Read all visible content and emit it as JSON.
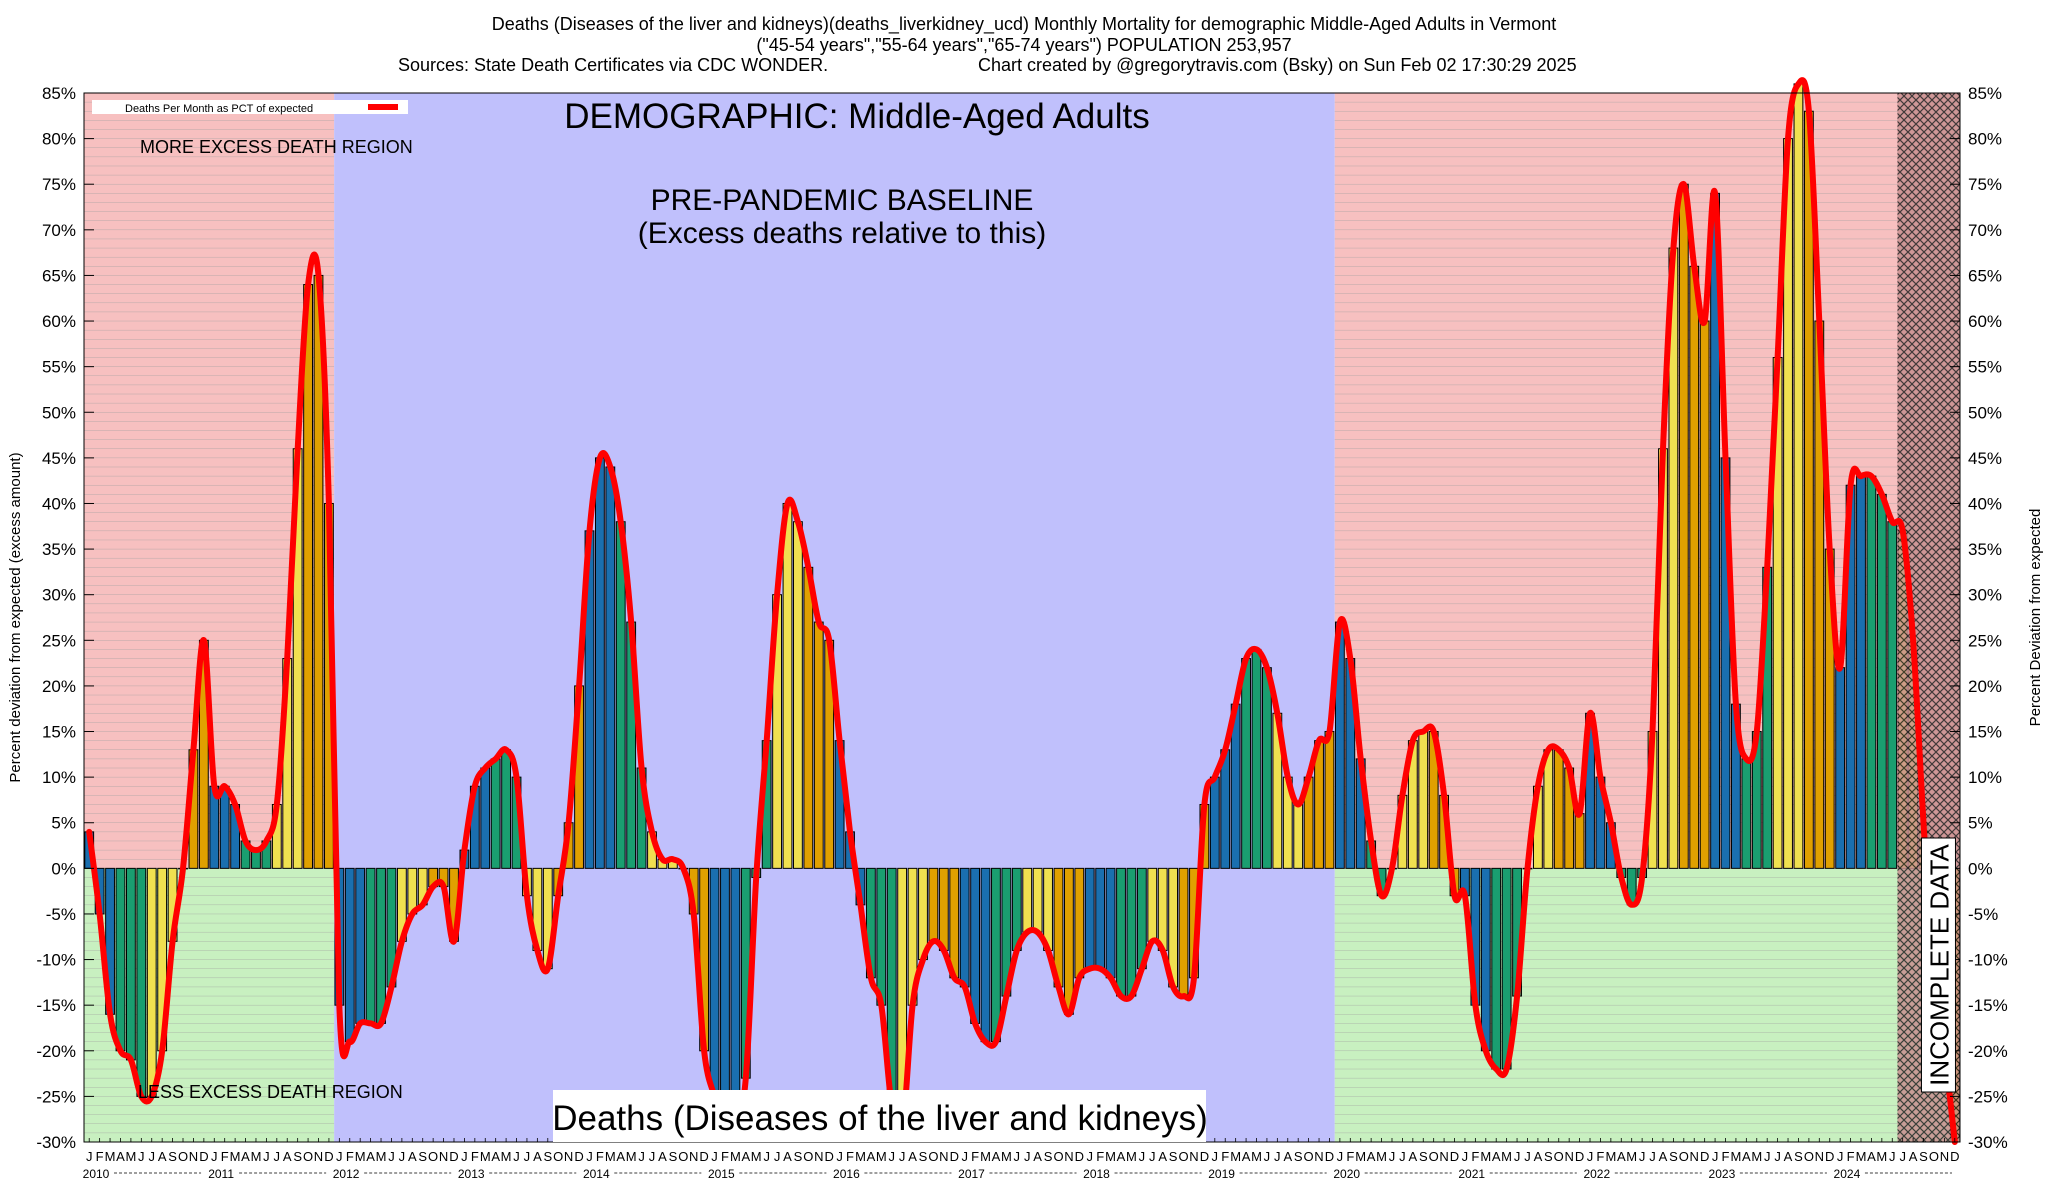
{
  "header": {
    "line1": "Deaths (Diseases of the liver and kidneys)(deaths_liverkidney_ucd) Monthly Mortality for demographic Middle-Aged Adults in Vermont",
    "line2": "(\"45-54 years\",\"55-64 years\",\"65-74 years\") POPULATION 253,957",
    "line3_left": "Sources: State Death Certificates via CDC WONDER.",
    "line3_right": "Chart created by @gregorytravis.com (Bsky) on Sun Feb 02 17:30:29 2025"
  },
  "chart_data": {
    "type": "bar",
    "title": "DEMOGRAPHIC: Middle-Aged Adults",
    "bottom_title": "Deaths (Diseases of the liver and kidneys)",
    "ylabel_left": "Percent deviation from expected (excess amount)",
    "ylabel_right": "Percent Deviation from expected",
    "legend": "Deaths Per Month as PCT of expected",
    "ylim": [
      -30,
      85
    ],
    "grid": true,
    "legend_position": "top-left",
    "yticks": [
      "85%",
      "80%",
      "75%",
      "70%",
      "65%",
      "60%",
      "55%",
      "50%",
      "45%",
      "40%",
      "35%",
      "30%",
      "25%",
      "20%",
      "15%",
      "10%",
      "5%",
      "0%",
      "-5%",
      "-10%",
      "-15%",
      "-20%",
      "-25%",
      "-30%"
    ],
    "month_labels": [
      "J",
      "F",
      "M",
      "A",
      "M",
      "J",
      "J",
      "A",
      "S",
      "O",
      "N",
      "D"
    ],
    "years": [
      "2010",
      "2011",
      "2012",
      "2013",
      "2014",
      "2015",
      "2016",
      "2017",
      "2018",
      "2019",
      "2020",
      "2021",
      "2022",
      "2023",
      "2024"
    ],
    "start": "2010-01",
    "annotations": {
      "more_excess": "MORE EXCESS DEATH REGION",
      "less_excess": "LESS EXCESS DEATH REGION",
      "baseline_line1": "PRE-PANDEMIC BASELINE",
      "baseline_line2": "(Excess deaths relative to this)",
      "incomplete": "INCOMPLETE DATA"
    },
    "baseline_period": [
      "2012-01",
      "2019-12"
    ],
    "incomplete_period": [
      "2024-07",
      "2024-12"
    ],
    "values": [
      4,
      -5,
      -16,
      -20,
      -21,
      -25,
      -25,
      -20,
      -8,
      0,
      13,
      25,
      9,
      9,
      7,
      3,
      2,
      3,
      7,
      23,
      46,
      64,
      65,
      40,
      -15,
      -19,
      -17,
      -17,
      -17,
      -13,
      -8,
      -5,
      -4,
      -2,
      -2,
      -8,
      2,
      9,
      11,
      12,
      13,
      10,
      -3,
      -9,
      -11,
      -3,
      5,
      20,
      37,
      45,
      44,
      38,
      27,
      11,
      4,
      1,
      1,
      0,
      -5,
      -20,
      -25,
      -28,
      -28,
      -23,
      -1,
      14,
      30,
      40,
      38,
      33,
      27,
      25,
      14,
      4,
      -4,
      -12,
      -15,
      -26,
      -29,
      -15,
      -10,
      -8,
      -9,
      -12,
      -13,
      -17,
      -19,
      -19,
      -14,
      -9,
      -7,
      -7,
      -9,
      -13,
      -16,
      -12,
      -11,
      -11,
      -12,
      -14,
      -14,
      -11,
      -8,
      -9,
      -13,
      -14,
      -12,
      7,
      10,
      13,
      18,
      23,
      24,
      22,
      17,
      10,
      7,
      10,
      14,
      15,
      27,
      23,
      12,
      3,
      -3,
      0,
      8,
      14,
      15,
      15,
      8,
      -3,
      -3,
      -15,
      -20,
      -22,
      -22,
      -14,
      0,
      9,
      13,
      13,
      11,
      6,
      17,
      10,
      5,
      -1,
      -4,
      -1,
      15,
      46,
      68,
      75,
      66,
      60,
      74,
      45,
      18,
      12,
      15,
      33,
      56,
      80,
      86,
      83,
      60,
      35,
      22,
      42,
      43,
      43,
      41,
      38,
      37,
      25,
      5,
      -13,
      -20,
      -30
    ],
    "colors": {
      "line": "#ff0000",
      "blue": "#1a6faf",
      "green": "#1a9e70",
      "yellow": "#f0e050",
      "orange": "#e0a000",
      "pink_bg": "#f7c0c0",
      "green_bg": "#c8f0c0",
      "baseline_bg": "#c0c0fc"
    }
  }
}
